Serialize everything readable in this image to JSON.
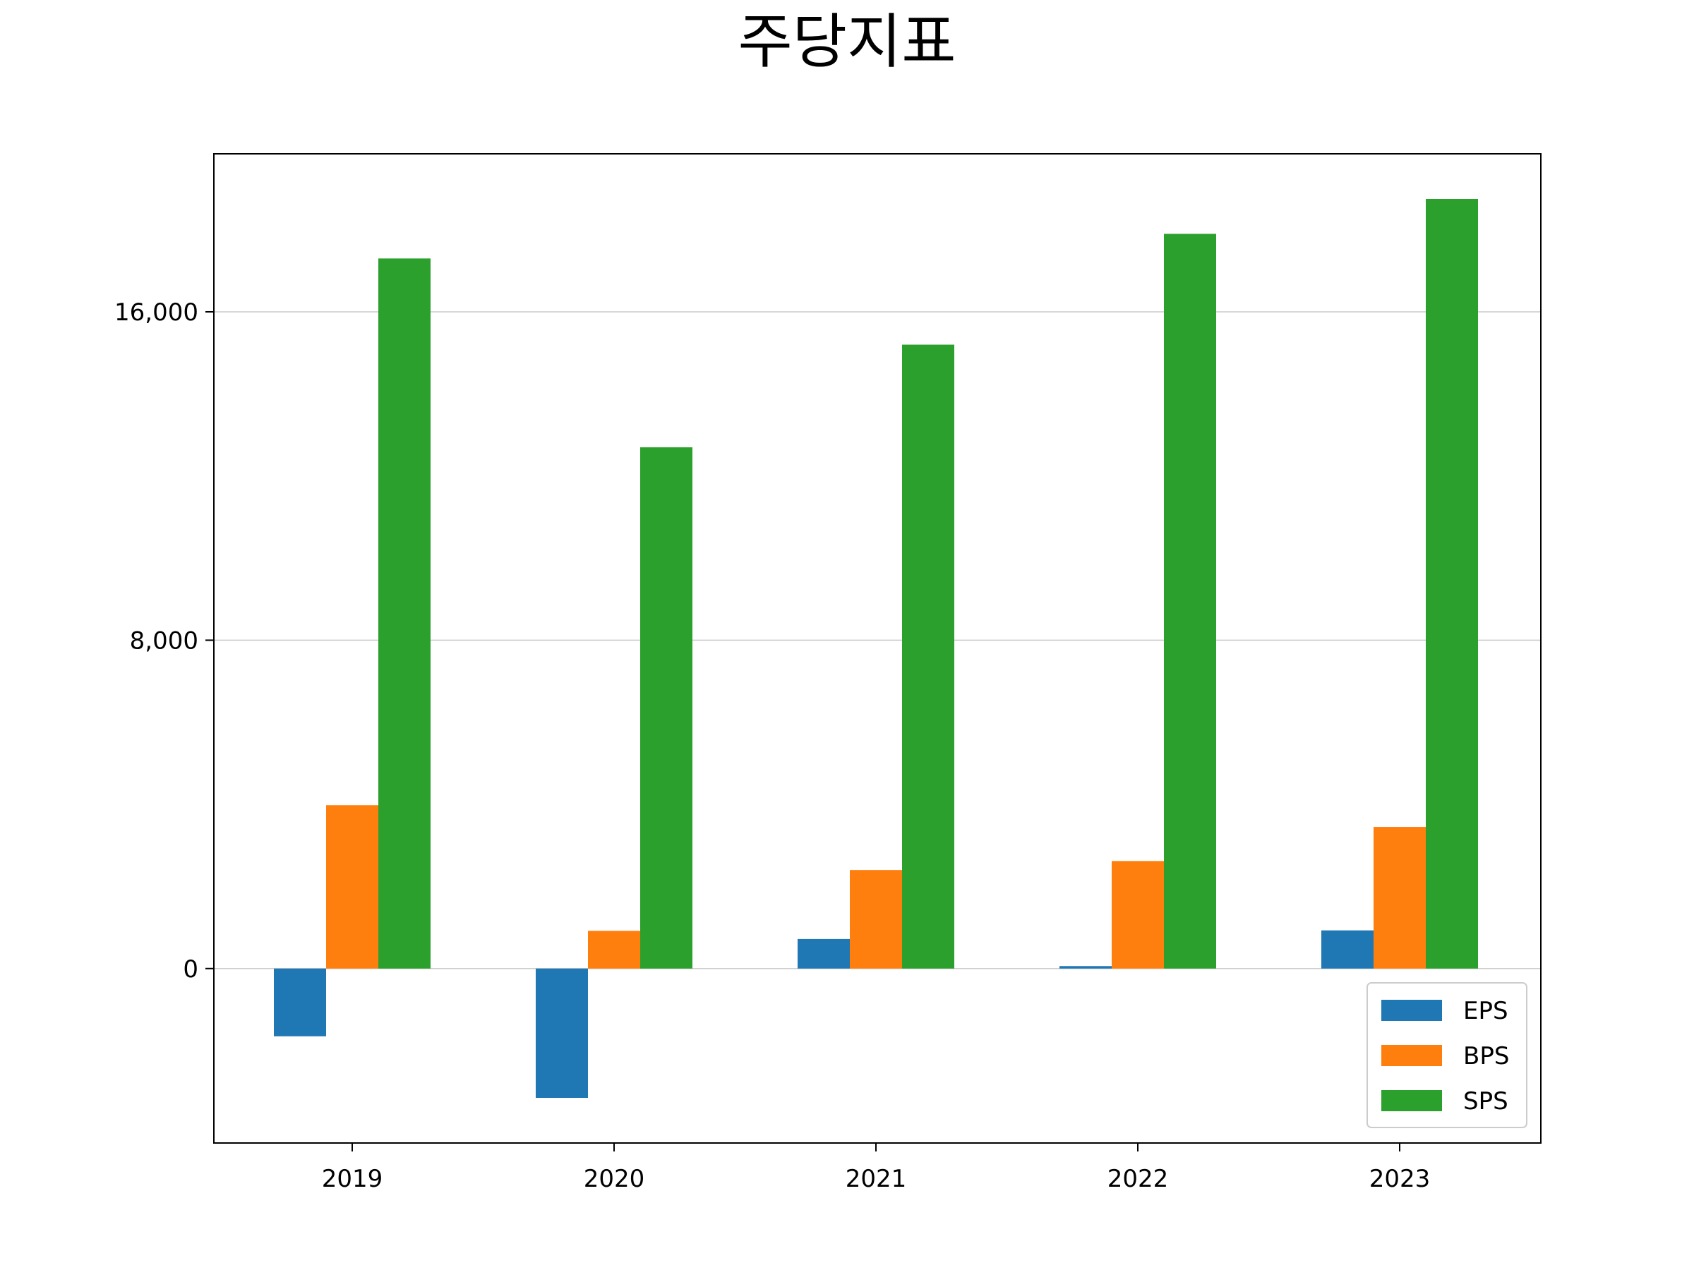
{
  "chart_data": {
    "type": "bar",
    "title": "주당지표",
    "xlabel": "",
    "ylabel": "",
    "categories": [
      "2019",
      "2020",
      "2021",
      "2022",
      "2023"
    ],
    "series": [
      {
        "name": "EPS",
        "color": "#1f77b4",
        "values": [
          -1650,
          -3150,
          720,
          60,
          930
        ]
      },
      {
        "name": "BPS",
        "color": "#ff7f0e",
        "values": [
          3980,
          920,
          2400,
          2620,
          3450
        ]
      },
      {
        "name": "SPS",
        "color": "#2ca02c",
        "values": [
          17300,
          12700,
          15200,
          17900,
          18750
        ]
      }
    ],
    "ylim": [
      -4250,
      19850
    ],
    "yticks": [
      0,
      8000,
      16000
    ],
    "ytick_labels": [
      "0",
      "8,000",
      "16,000"
    ],
    "grid": "horizontal",
    "legend": "lower-right"
  }
}
